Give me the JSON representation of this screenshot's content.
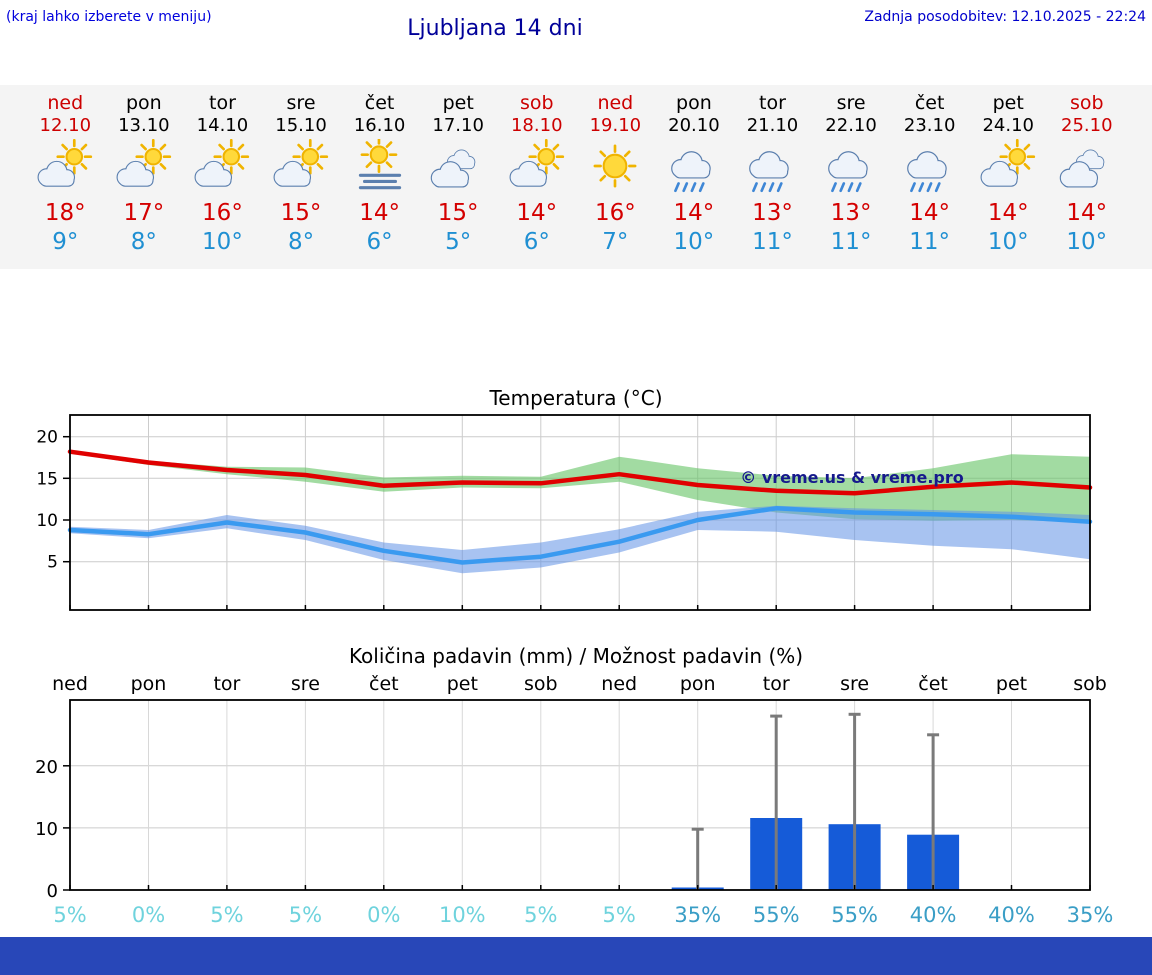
{
  "header": {
    "hint": "(kraj lahko izberete v meniju)",
    "title": "Ljubljana 14 dni",
    "updated": "Zadnja posodobitev: 12.10.2025 - 22:24"
  },
  "colors": {
    "accent_red": "#cc0000",
    "high_temp": "#d40000",
    "low_temp": "#1f8fd2",
    "header_blue": "#0000cc",
    "title_blue": "#000099",
    "strip_background": "#f4f4f4",
    "footer_blue": "#2847b8"
  },
  "forecast": {
    "days": [
      {
        "day": "ned",
        "date": "12.10",
        "icon": "partly-sunny",
        "high": "18°",
        "low": "9°",
        "red": true
      },
      {
        "day": "pon",
        "date": "13.10",
        "icon": "partly-sunny",
        "high": "17°",
        "low": "8°",
        "red": false
      },
      {
        "day": "tor",
        "date": "14.10",
        "icon": "partly-sunny",
        "high": "16°",
        "low": "10°",
        "red": false
      },
      {
        "day": "sre",
        "date": "15.10",
        "icon": "partly-sunny",
        "high": "15°",
        "low": "8°",
        "red": false
      },
      {
        "day": "čet",
        "date": "16.10",
        "icon": "fog-sun",
        "high": "14°",
        "low": "6°",
        "red": false
      },
      {
        "day": "pet",
        "date": "17.10",
        "icon": "cloudy",
        "high": "15°",
        "low": "5°",
        "red": false
      },
      {
        "day": "sob",
        "date": "18.10",
        "icon": "partly-sunny",
        "high": "14°",
        "low": "6°",
        "red": true
      },
      {
        "day": "ned",
        "date": "19.10",
        "icon": "sunny",
        "high": "16°",
        "low": "7°",
        "red": true
      },
      {
        "day": "pon",
        "date": "20.10",
        "icon": "rain",
        "high": "14°",
        "low": "10°",
        "red": false
      },
      {
        "day": "tor",
        "date": "21.10",
        "icon": "rain",
        "high": "13°",
        "low": "11°",
        "red": false
      },
      {
        "day": "sre",
        "date": "22.10",
        "icon": "rain",
        "high": "13°",
        "low": "11°",
        "red": false
      },
      {
        "day": "čet",
        "date": "23.10",
        "icon": "rain",
        "high": "14°",
        "low": "11°",
        "red": false
      },
      {
        "day": "pet",
        "date": "24.10",
        "icon": "partly-sunny",
        "high": "14°",
        "low": "10°",
        "red": false
      },
      {
        "day": "sob",
        "date": "25.10",
        "icon": "cloudy",
        "high": "14°",
        "low": "10°",
        "red": true
      }
    ]
  },
  "chart_data": [
    {
      "type": "line",
      "title": "Temperatura (°C)",
      "categories": [
        "ned",
        "pon",
        "tor",
        "sre",
        "čet",
        "pet",
        "sob",
        "ned",
        "pon",
        "tor",
        "sre",
        "čet",
        "pet",
        "sob"
      ],
      "yticks": [
        5,
        10,
        15,
        20
      ],
      "ylim": [
        -0.8,
        22.6
      ],
      "grid": true,
      "annotation": "© vreme.us & vreme.pro",
      "series": [
        {
          "name": "max-temperature",
          "color": "#e00000",
          "values": [
            18.2,
            16.9,
            16.0,
            15.4,
            14.1,
            14.5,
            14.4,
            15.5,
            14.2,
            13.5,
            13.2,
            14.0,
            14.5,
            13.9
          ],
          "band": {
            "color": "rgba(100,195,100,0.6)",
            "upper": [
              18.4,
              17.1,
              16.4,
              16.3,
              15.1,
              15.3,
              15.2,
              17.6,
              16.2,
              15.3,
              15.0,
              16.2,
              17.9,
              17.6
            ],
            "lower": [
              18.0,
              16.6,
              15.5,
              14.6,
              13.4,
              13.9,
              13.8,
              14.6,
              12.4,
              10.9,
              10.1,
              9.9,
              10.0,
              9.7
            ]
          }
        },
        {
          "name": "min-temperature",
          "color": "#3a9af0",
          "values": [
            8.8,
            8.3,
            9.7,
            8.5,
            6.3,
            4.9,
            5.6,
            7.4,
            10.0,
            11.4,
            10.9,
            10.7,
            10.4,
            9.8
          ],
          "band": {
            "color": "rgba(96,145,230,0.55)",
            "upper": [
              9.2,
              8.8,
              10.6,
              9.3,
              7.3,
              6.4,
              7.3,
              8.9,
              11.0,
              11.7,
              11.4,
              11.2,
              11.0,
              10.6
            ],
            "lower": [
              8.4,
              7.8,
              9.0,
              7.6,
              5.2,
              3.6,
              4.3,
              6.1,
              8.8,
              8.6,
              7.6,
              6.9,
              6.5,
              5.3
            ]
          }
        }
      ]
    },
    {
      "type": "bar",
      "title": "Količina padavin (mm) / Možnost padavin (%)",
      "categories": [
        "ned",
        "pon",
        "tor",
        "sre",
        "čet",
        "pet",
        "sob",
        "ned",
        "pon",
        "tor",
        "sre",
        "čet",
        "pet",
        "sob"
      ],
      "values": [
        0,
        0,
        0,
        0,
        0,
        0,
        0,
        0,
        0.4,
        11.6,
        10.6,
        8.9,
        0,
        0
      ],
      "whiskers": [
        0,
        0,
        0,
        0,
        0,
        0,
        0,
        0,
        9.8,
        28,
        28.3,
        25,
        0,
        0
      ],
      "probabilities": [
        "5%",
        "0%",
        "5%",
        "5%",
        "0%",
        "10%",
        "5%",
        "5%",
        "35%",
        "55%",
        "55%",
        "40%",
        "40%",
        "35%"
      ],
      "yticks": [
        0,
        10,
        20
      ],
      "ylim": [
        0,
        30.6
      ],
      "bar_color": "#155bd8",
      "whisker_color": "#7a7a7a",
      "prob_color_low": "#6fd3dd",
      "prob_color_high": "#3a9ec6"
    }
  ]
}
